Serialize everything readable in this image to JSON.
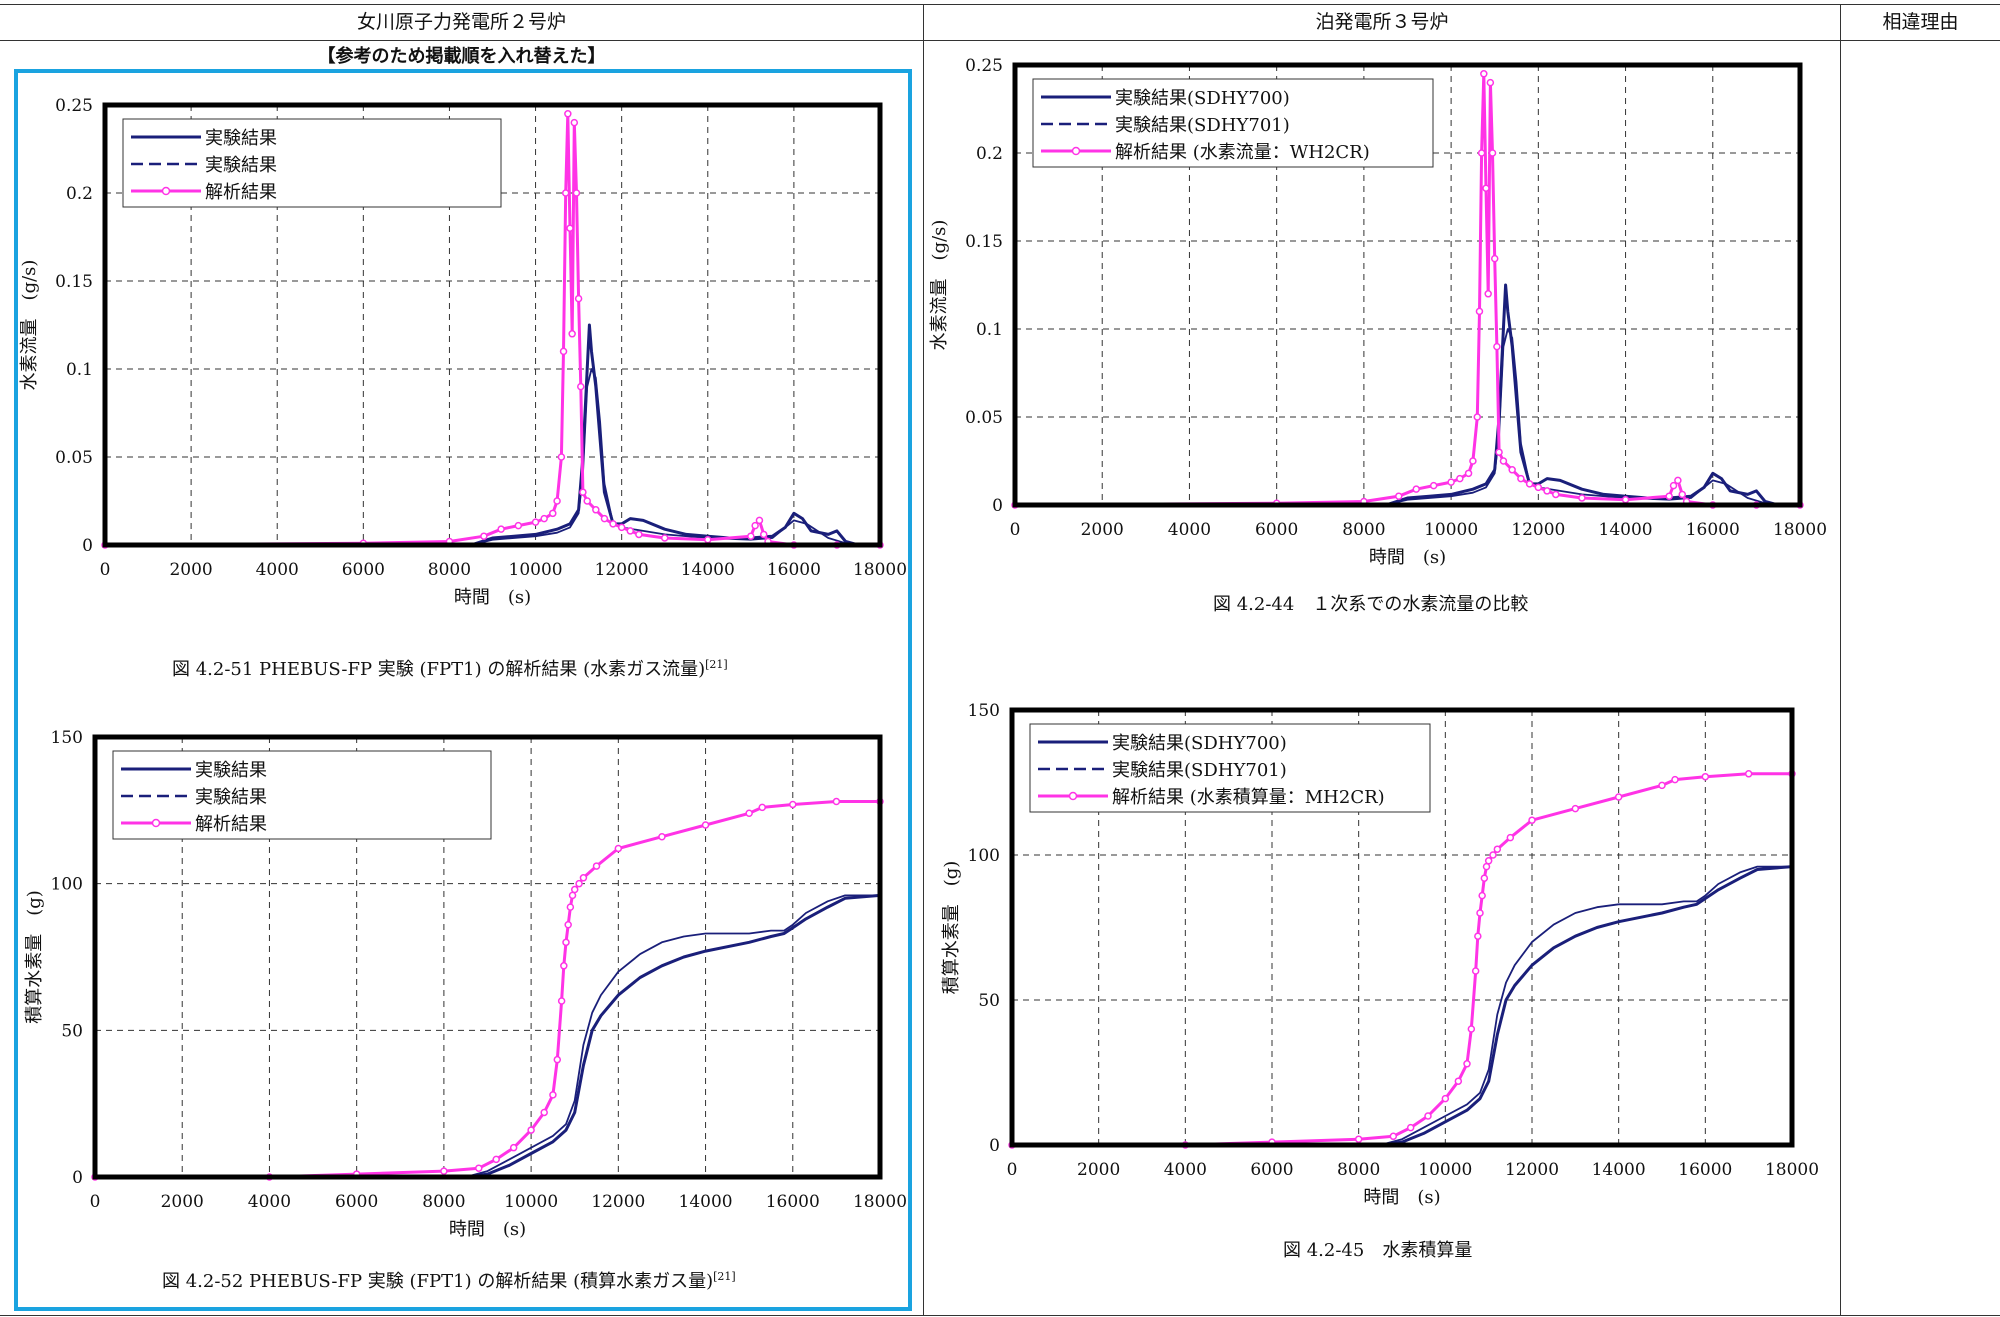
{
  "header": {
    "left": "女川原子力発電所２号炉",
    "middle": "泊発電所３号炉",
    "right": "相違理由"
  },
  "note": "【参考のため掲載順を入れ替えた】",
  "colors": {
    "navy": "#1a1f7a",
    "magenta": "#ff33e6",
    "accent_box": "#1aa3e0"
  },
  "chart_data": [
    {
      "id": "c1",
      "type": "line",
      "title": "",
      "xlabel": "時間　(s)",
      "ylabel": "水素流量　(g/s)",
      "caption": "図 4.2-51 PHEBUS-FP 実験 (FPT1) の解析結果 (水素ガス流量)",
      "caption_ref": "[21]",
      "xlim": [
        0,
        18000
      ],
      "ylim": [
        0,
        0.25
      ],
      "xticks": [
        0,
        2000,
        4000,
        6000,
        8000,
        10000,
        12000,
        14000,
        16000,
        18000
      ],
      "yticks": [
        0,
        0.05,
        0.1,
        0.15,
        0.2,
        0.25
      ],
      "xtick_labels": [
        "0",
        "2000",
        "4000",
        "6000",
        "8000",
        "10000",
        "12000",
        "14000",
        "16000",
        "18000"
      ],
      "ytick_labels": [
        "0",
        "0.05",
        "0.1",
        "0.15",
        "0.2",
        "0.25"
      ],
      "legend_position": "top-left",
      "grid": true,
      "series": [
        {
          "name": "実験結果",
          "style": "solid",
          "x": [
            0,
            8500,
            9000,
            9500,
            10000,
            10500,
            10800,
            11000,
            11100,
            11200,
            11250,
            11300,
            11400,
            11500,
            11600,
            11800,
            12000,
            12200,
            12500,
            13000,
            13500,
            14000,
            14500,
            15000,
            15500,
            15800,
            16000,
            16200,
            16400,
            16800,
            17000,
            17200,
            17500,
            18000
          ],
          "y": [
            0,
            0,
            0.004,
            0.005,
            0.006,
            0.009,
            0.012,
            0.02,
            0.05,
            0.1,
            0.125,
            0.11,
            0.09,
            0.06,
            0.03,
            0.012,
            0.012,
            0.015,
            0.014,
            0.009,
            0.006,
            0.005,
            0.004,
            0.004,
            0.005,
            0.01,
            0.018,
            0.015,
            0.008,
            0.006,
            0.008,
            0.002,
            0,
            0
          ]
        },
        {
          "name": "実験結果",
          "style": "dashed",
          "x": [
            0,
            8500,
            9000,
            9500,
            10000,
            10500,
            10800,
            11000,
            11100,
            11200,
            11300,
            11400,
            11500,
            11600,
            11800,
            12000,
            12500,
            13000,
            14000,
            15000,
            15500,
            16000,
            16300,
            16800,
            17200,
            18000
          ],
          "y": [
            0,
            0,
            0.003,
            0.004,
            0.005,
            0.007,
            0.01,
            0.018,
            0.04,
            0.09,
            0.1,
            0.095,
            0.07,
            0.035,
            0.012,
            0.01,
            0.008,
            0.006,
            0.004,
            0.003,
            0.004,
            0.014,
            0.012,
            0.004,
            0.001,
            0
          ]
        },
        {
          "name": "解析結果",
          "style": "marker",
          "x": [
            0,
            6000,
            8000,
            8800,
            9200,
            9600,
            10000,
            10200,
            10400,
            10500,
            10600,
            10650,
            10700,
            10750,
            10800,
            10850,
            10900,
            10950,
            11000,
            11050,
            11100,
            11200,
            11400,
            11600,
            11800,
            12000,
            12200,
            12400,
            13000,
            14000,
            15000,
            15100,
            15200,
            15300,
            15400,
            16000,
            17000,
            18000
          ],
          "y": [
            0,
            0.001,
            0.002,
            0.005,
            0.009,
            0.011,
            0.013,
            0.015,
            0.018,
            0.025,
            0.05,
            0.11,
            0.2,
            0.245,
            0.18,
            0.12,
            0.24,
            0.2,
            0.14,
            0.09,
            0.03,
            0.025,
            0.02,
            0.015,
            0.012,
            0.01,
            0.008,
            0.006,
            0.004,
            0.003,
            0.005,
            0.011,
            0.014,
            0.006,
            0.002,
            0,
            0,
            0
          ]
        }
      ]
    },
    {
      "id": "c2",
      "type": "line",
      "title": "",
      "xlabel": "時間　(s)",
      "ylabel": "水素流量　(g/s)",
      "caption": "図 4.2-44　１次系での水素流量の比較",
      "caption_ref": "",
      "xlim": [
        0,
        18000
      ],
      "ylim": [
        0,
        0.25
      ],
      "xticks": [
        0,
        2000,
        4000,
        6000,
        8000,
        10000,
        12000,
        14000,
        16000,
        18000
      ],
      "yticks": [
        0,
        0.05,
        0.1,
        0.15,
        0.2,
        0.25
      ],
      "xtick_labels": [
        "0",
        "2000",
        "4000",
        "6000",
        "8000",
        "10000",
        "12000",
        "14000",
        "16000",
        "18000"
      ],
      "ytick_labels": [
        "0",
        "0.05",
        "0.1",
        "0.15",
        "0.2",
        "0.25"
      ],
      "legend_position": "top-left",
      "grid": true,
      "series": [
        {
          "name": "実験結果(SDHY700)",
          "style": "solid",
          "x": [
            0,
            8500,
            9000,
            9500,
            10000,
            10500,
            10800,
            11000,
            11100,
            11200,
            11250,
            11300,
            11400,
            11500,
            11600,
            11800,
            12000,
            12200,
            12500,
            13000,
            13500,
            14000,
            14500,
            15000,
            15500,
            15800,
            16000,
            16200,
            16400,
            16800,
            17000,
            17200,
            17500,
            18000
          ],
          "y": [
            0,
            0,
            0.004,
            0.005,
            0.006,
            0.009,
            0.012,
            0.02,
            0.05,
            0.1,
            0.125,
            0.11,
            0.09,
            0.06,
            0.03,
            0.012,
            0.012,
            0.015,
            0.014,
            0.009,
            0.006,
            0.005,
            0.004,
            0.004,
            0.005,
            0.01,
            0.018,
            0.015,
            0.008,
            0.006,
            0.008,
            0.002,
            0,
            0
          ]
        },
        {
          "name": "実験結果(SDHY701)",
          "style": "dashed",
          "x": [
            0,
            8500,
            9000,
            9500,
            10000,
            10500,
            10800,
            11000,
            11100,
            11200,
            11300,
            11400,
            11500,
            11600,
            11800,
            12000,
            12500,
            13000,
            14000,
            15000,
            15500,
            16000,
            16300,
            16800,
            17200,
            18000
          ],
          "y": [
            0,
            0,
            0.003,
            0.004,
            0.005,
            0.007,
            0.01,
            0.018,
            0.04,
            0.09,
            0.1,
            0.095,
            0.07,
            0.035,
            0.012,
            0.01,
            0.008,
            0.006,
            0.004,
            0.003,
            0.004,
            0.014,
            0.012,
            0.004,
            0.001,
            0
          ]
        },
        {
          "name": "解析結果 (水素流量：WH2CR)",
          "style": "marker",
          "x": [
            0,
            6000,
            8000,
            8800,
            9200,
            9600,
            10000,
            10200,
            10400,
            10500,
            10600,
            10650,
            10700,
            10750,
            10800,
            10850,
            10900,
            10950,
            11000,
            11050,
            11100,
            11200,
            11400,
            11600,
            11800,
            12000,
            12200,
            12400,
            13000,
            14000,
            15000,
            15100,
            15200,
            15300,
            15400,
            16000,
            17000,
            18000
          ],
          "y": [
            0,
            0.001,
            0.002,
            0.005,
            0.009,
            0.011,
            0.013,
            0.015,
            0.018,
            0.025,
            0.05,
            0.11,
            0.2,
            0.245,
            0.18,
            0.12,
            0.24,
            0.2,
            0.14,
            0.09,
            0.03,
            0.025,
            0.02,
            0.015,
            0.012,
            0.01,
            0.008,
            0.006,
            0.004,
            0.003,
            0.005,
            0.011,
            0.014,
            0.006,
            0.002,
            0,
            0,
            0
          ]
        }
      ]
    },
    {
      "id": "c3",
      "type": "line",
      "title": "",
      "xlabel": "時間　(s)",
      "ylabel": "積算水素量　(g)",
      "caption": "図 4.2-52 PHEBUS-FP 実験 (FPT1) の解析結果 (積算水素ガス量)",
      "caption_ref": "[21]",
      "xlim": [
        0,
        18000
      ],
      "ylim": [
        0,
        150
      ],
      "xticks": [
        0,
        2000,
        4000,
        6000,
        8000,
        10000,
        12000,
        14000,
        16000,
        18000
      ],
      "yticks": [
        0,
        50,
        100,
        150
      ],
      "xtick_labels": [
        "0",
        "2000",
        "4000",
        "6000",
        "8000",
        "10000",
        "12000",
        "14000",
        "16000",
        "18000"
      ],
      "ytick_labels": [
        "0",
        "50",
        "100",
        "150"
      ],
      "legend_position": "top-left",
      "grid": true,
      "series": [
        {
          "name": "実験結果",
          "style": "solid",
          "x": [
            0,
            8500,
            9000,
            9500,
            10000,
            10500,
            10800,
            11000,
            11200,
            11400,
            11600,
            12000,
            12500,
            13000,
            13500,
            14000,
            15000,
            15500,
            15800,
            16000,
            16300,
            16800,
            17200,
            18000
          ],
          "y": [
            0,
            0,
            1,
            4,
            8,
            12,
            16,
            22,
            38,
            50,
            55,
            62,
            68,
            72,
            75,
            77,
            80,
            82,
            83,
            85,
            88,
            92,
            95,
            96
          ]
        },
        {
          "name": "実験結果",
          "style": "dashed",
          "x": [
            0,
            8500,
            9000,
            9500,
            10000,
            10500,
            10800,
            11000,
            11200,
            11400,
            11600,
            12000,
            12500,
            13000,
            13500,
            14000,
            15000,
            15500,
            15800,
            16000,
            16300,
            16800,
            17200,
            18000
          ],
          "y": [
            0,
            0,
            2,
            6,
            10,
            14,
            18,
            26,
            45,
            56,
            62,
            70,
            76,
            80,
            82,
            83,
            83,
            84,
            84,
            86,
            90,
            94,
            96,
            96
          ]
        },
        {
          "name": "解析結果",
          "style": "marker",
          "x": [
            0,
            4000,
            6000,
            8000,
            8800,
            9200,
            9600,
            10000,
            10300,
            10500,
            10600,
            10700,
            10750,
            10800,
            10850,
            10900,
            10950,
            11000,
            11100,
            11200,
            11500,
            12000,
            13000,
            14000,
            15000,
            15300,
            16000,
            17000,
            18000
          ],
          "y": [
            0,
            0,
            1,
            2,
            3,
            6,
            10,
            16,
            22,
            28,
            40,
            60,
            72,
            80,
            86,
            92,
            96,
            98,
            100,
            102,
            106,
            112,
            116,
            120,
            124,
            126,
            127,
            128,
            128
          ]
        }
      ]
    },
    {
      "id": "c4",
      "type": "line",
      "title": "",
      "xlabel": "時間　(s)",
      "ylabel": "積算水素量　(g)",
      "caption": "図 4.2-45　水素積算量",
      "caption_ref": "",
      "xlim": [
        0,
        18000
      ],
      "ylim": [
        0,
        150
      ],
      "xticks": [
        0,
        2000,
        4000,
        6000,
        8000,
        10000,
        12000,
        14000,
        16000,
        18000
      ],
      "yticks": [
        0,
        50,
        100,
        150
      ],
      "xtick_labels": [
        "0",
        "2000",
        "4000",
        "6000",
        "8000",
        "10000",
        "12000",
        "14000",
        "16000",
        "18000"
      ],
      "ytick_labels": [
        "0",
        "50",
        "100",
        "150"
      ],
      "legend_position": "top-left",
      "grid": true,
      "series": [
        {
          "name": "実験結果(SDHY700)",
          "style": "solid",
          "x": [
            0,
            8500,
            9000,
            9500,
            10000,
            10500,
            10800,
            11000,
            11200,
            11400,
            11600,
            12000,
            12500,
            13000,
            13500,
            14000,
            15000,
            15500,
            15800,
            16000,
            16300,
            16800,
            17200,
            18000
          ],
          "y": [
            0,
            0,
            1,
            4,
            8,
            12,
            16,
            22,
            38,
            50,
            55,
            62,
            68,
            72,
            75,
            77,
            80,
            82,
            83,
            85,
            88,
            92,
            95,
            96
          ]
        },
        {
          "name": "実験結果(SDHY701)",
          "style": "dashed",
          "x": [
            0,
            8500,
            9000,
            9500,
            10000,
            10500,
            10800,
            11000,
            11200,
            11400,
            11600,
            12000,
            12500,
            13000,
            13500,
            14000,
            15000,
            15500,
            15800,
            16000,
            16300,
            16800,
            17200,
            18000
          ],
          "y": [
            0,
            0,
            2,
            6,
            10,
            14,
            18,
            26,
            45,
            56,
            62,
            70,
            76,
            80,
            82,
            83,
            83,
            84,
            84,
            86,
            90,
            94,
            96,
            96
          ]
        },
        {
          "name": "解析結果 (水素積算量：MH2CR)",
          "style": "marker",
          "x": [
            0,
            4000,
            6000,
            8000,
            8800,
            9200,
            9600,
            10000,
            10300,
            10500,
            10600,
            10700,
            10750,
            10800,
            10850,
            10900,
            10950,
            11000,
            11100,
            11200,
            11500,
            12000,
            13000,
            14000,
            15000,
            15300,
            16000,
            17000,
            18000
          ],
          "y": [
            0,
            0,
            1,
            2,
            3,
            6,
            10,
            16,
            22,
            28,
            40,
            60,
            72,
            80,
            86,
            92,
            96,
            98,
            100,
            102,
            106,
            112,
            116,
            120,
            124,
            126,
            127,
            128,
            128
          ]
        }
      ]
    }
  ]
}
